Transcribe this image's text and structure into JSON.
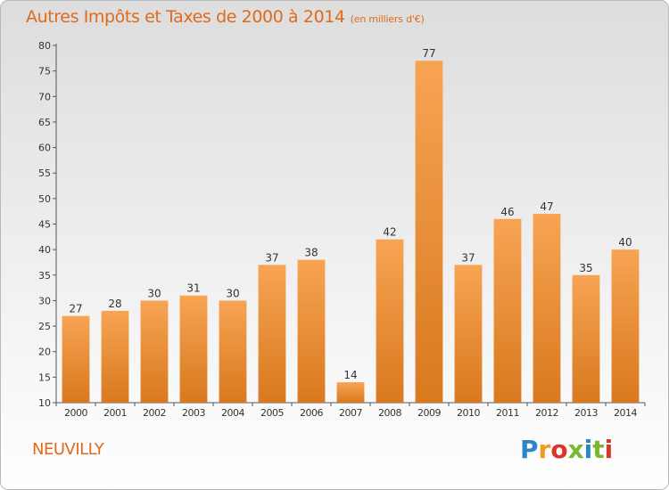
{
  "header": {
    "title": "Autres Impôts et Taxes de 2000 à 2014",
    "subtitle": "(en milliers d'€)"
  },
  "footer": {
    "commune": "NEUVILLY",
    "logo": "Proxiti"
  },
  "colors": {
    "accent": "#e06a1a",
    "bar_top": "#f7a14f",
    "bar_bottom": "#d97a1f",
    "background_top": "#dddddd",
    "background_bottom": "#ffffff"
  },
  "chart_data": {
    "type": "bar",
    "title": "Autres Impôts et Taxes de 2000 à 2014",
    "subtitle": "(en milliers d'€)",
    "xlabel": "",
    "ylabel": "",
    "categories": [
      "2000",
      "2001",
      "2002",
      "2003",
      "2004",
      "2005",
      "2006",
      "2007",
      "2008",
      "2009",
      "2010",
      "2011",
      "2012",
      "2013",
      "2014"
    ],
    "values": [
      27,
      28,
      30,
      31,
      30,
      37,
      38,
      14,
      42,
      77,
      37,
      46,
      47,
      35,
      40
    ],
    "ylim": [
      10,
      80
    ],
    "yticks": [
      10,
      15,
      20,
      25,
      30,
      35,
      40,
      45,
      50,
      55,
      60,
      65,
      70,
      75,
      80
    ],
    "grid": false,
    "data_labels": true
  }
}
